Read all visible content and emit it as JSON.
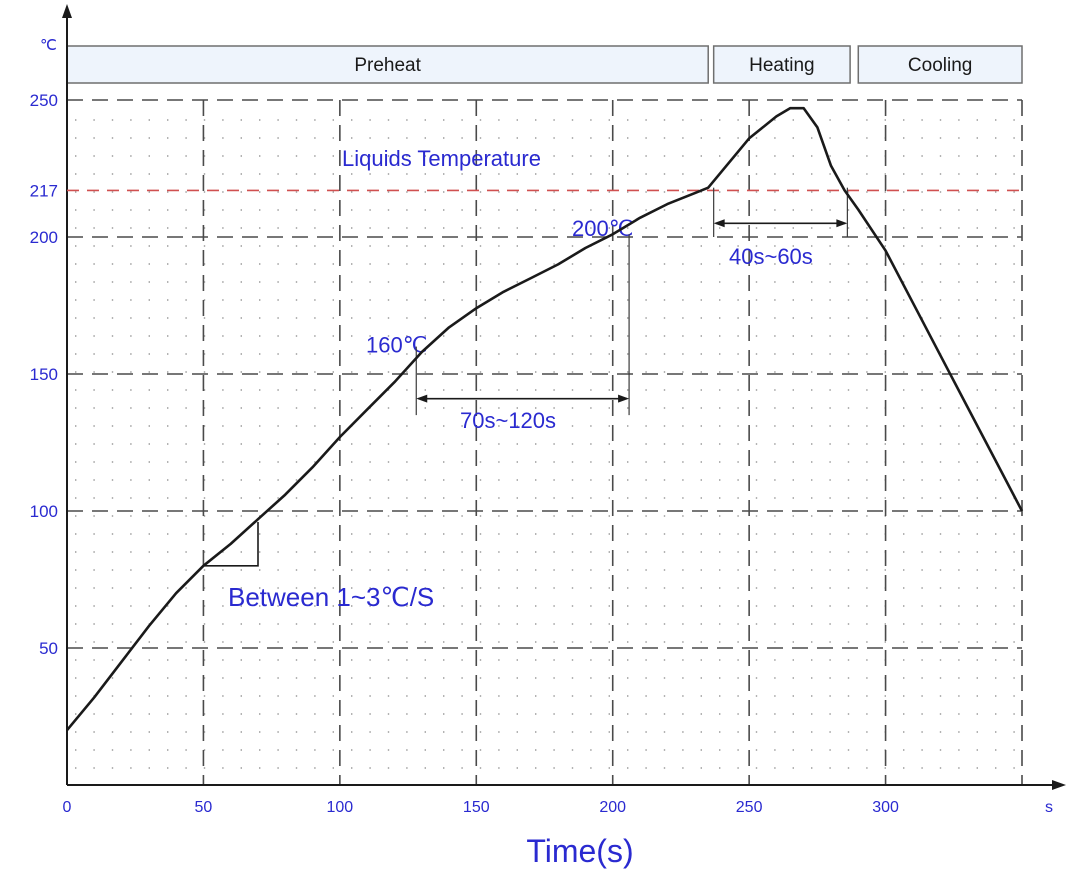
{
  "chart_data": {
    "type": "line",
    "title": "",
    "xlabel": "Time(s)",
    "x_unit": "s",
    "y_unit": "℃",
    "xlim": [
      0,
      350
    ],
    "ylim": [
      0,
      250
    ],
    "x_ticks": [
      {
        "value": 0,
        "label": "0"
      },
      {
        "value": 50,
        "label": "50"
      },
      {
        "value": 100,
        "label": "100"
      },
      {
        "value": 150,
        "label": "150"
      },
      {
        "value": 200,
        "label": "200"
      },
      {
        "value": 250,
        "label": "250"
      },
      {
        "value": 300,
        "label": "300"
      }
    ],
    "y_ticks": [
      {
        "value": 50,
        "label": "50"
      },
      {
        "value": 100,
        "label": "100"
      },
      {
        "value": 150,
        "label": "150"
      },
      {
        "value": 200,
        "label": "200"
      },
      {
        "value": 217,
        "label": "217"
      },
      {
        "value": 250,
        "label": "250"
      }
    ],
    "grid": true,
    "phases": [
      {
        "label": "Preheat",
        "x_start": 0,
        "x_end": 235
      },
      {
        "label": "Heating",
        "x_start": 237,
        "x_end": 287
      },
      {
        "label": "Cooling",
        "x_start": 290,
        "x_end": 350
      }
    ],
    "liquidus": {
      "value": 217,
      "label": "Liquids Temperature"
    },
    "series": [
      {
        "name": "",
        "x": [
          0,
          10,
          20,
          30,
          40,
          50,
          60,
          70,
          80,
          90,
          100,
          110,
          120,
          130,
          140,
          150,
          160,
          170,
          180,
          190,
          200,
          210,
          220,
          230,
          235,
          240,
          250,
          260,
          265,
          270,
          275,
          280,
          285,
          290,
          300,
          310,
          320,
          330,
          340,
          350
        ],
        "y": [
          20,
          32,
          45,
          58,
          70,
          80,
          88,
          97,
          106,
          116,
          127,
          137,
          147,
          158,
          167,
          174,
          180,
          185,
          190,
          196,
          201,
          207,
          212,
          216,
          218,
          224,
          236,
          244,
          247,
          247,
          240,
          226,
          217,
          210,
          195,
          176,
          157,
          138,
          119,
          100
        ]
      }
    ],
    "annotations": [
      {
        "text": "160℃",
        "x": 128,
        "y": 160
      },
      {
        "text": "200℃",
        "x": 205,
        "y": 200
      },
      {
        "text": "70s~120s",
        "x_start": 128,
        "x_end": 206,
        "y": 141
      },
      {
        "text": "40s~60s",
        "x_start": 237,
        "x_end": 286,
        "y": 205
      },
      {
        "text": "Between 1~3℃/S",
        "x": 50,
        "y": 72
      }
    ]
  }
}
